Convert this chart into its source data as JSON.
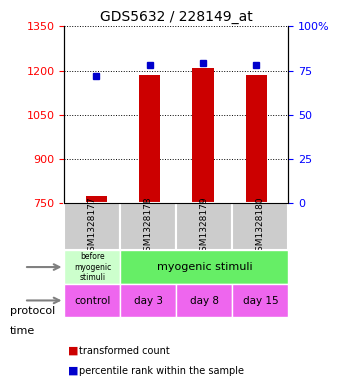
{
  "title": "GDS5632 / 228149_at",
  "samples": [
    "GSM1328177",
    "GSM1328178",
    "GSM1328179",
    "GSM1328180"
  ],
  "bar_values": [
    775,
    1185,
    1210,
    1185
  ],
  "bar_bottom": 750,
  "percentile_values": [
    72,
    78,
    79,
    78
  ],
  "ylim_left": [
    750,
    1350
  ],
  "ylim_right": [
    0,
    100
  ],
  "yticks_left": [
    750,
    900,
    1050,
    1200,
    1350
  ],
  "yticks_right": [
    0,
    25,
    50,
    75,
    100
  ],
  "ytick_labels_right": [
    "0",
    "25",
    "50",
    "75",
    "100%"
  ],
  "bar_color": "#cc0000",
  "dot_color": "#0000cc",
  "protocol_labels": [
    "before\nmyogenic\nstimuli",
    "myogenic stimuli"
  ],
  "protocol_colors": [
    "#ccffcc",
    "#66ee66"
  ],
  "time_labels": [
    "control",
    "day 3",
    "day 8",
    "day 15"
  ],
  "time_color": "#ee66ee",
  "sample_bg_color": "#cccccc",
  "background_color": "#ffffff"
}
